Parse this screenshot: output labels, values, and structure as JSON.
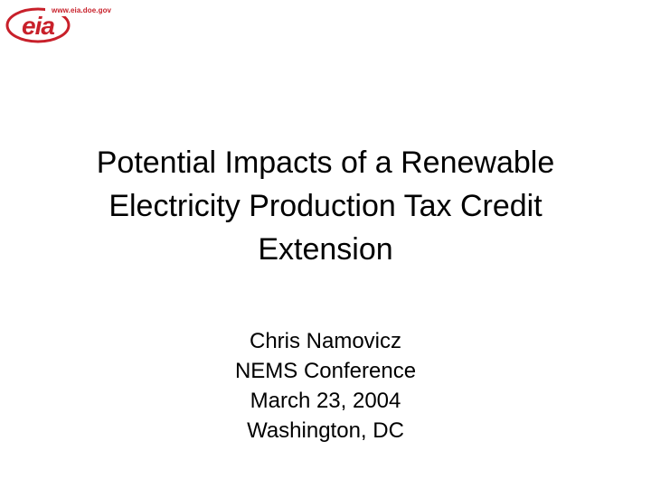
{
  "logo": {
    "url": "www.eia.doe.gov",
    "wordmark": "eia",
    "color": "#c8202a"
  },
  "title": {
    "lines": [
      "Potential Impacts of a Renewable",
      "Electricity Production Tax Credit",
      "Extension"
    ]
  },
  "subtitle": {
    "author": "Chris Namovicz",
    "event": "NEMS Conference",
    "date": "March 23, 2004",
    "location": "Washington, DC"
  }
}
